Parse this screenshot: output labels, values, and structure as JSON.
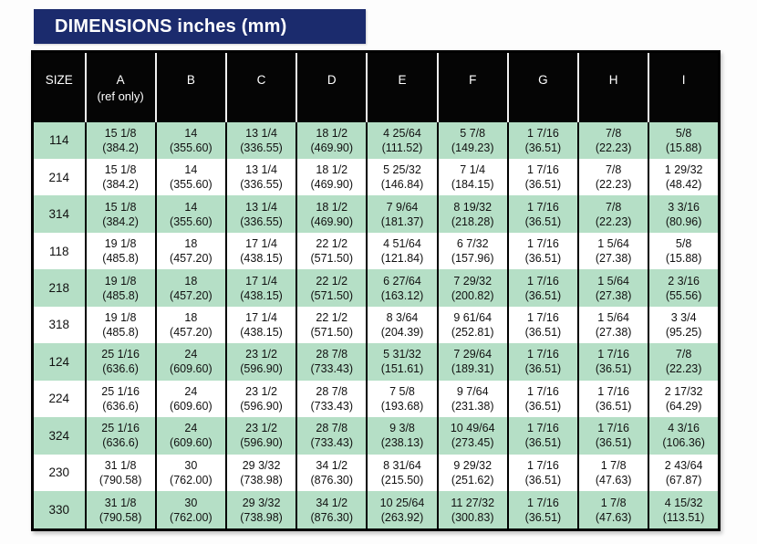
{
  "title": "DIMENSIONS inches (mm)",
  "colors": {
    "navy": "#1b2b6d",
    "header_bg": "#050505",
    "row_green": "#b5dfc6",
    "row_white": "#ffffff"
  },
  "table": {
    "headers": [
      "SIZE",
      "A",
      "B",
      "C",
      "D",
      "E",
      "F",
      "G",
      "H",
      "I"
    ],
    "header_subs": [
      "",
      "(ref only)",
      "",
      "",
      "",
      "",
      "",
      "",
      "",
      ""
    ],
    "rows": [
      {
        "size": "114",
        "cells": [
          {
            "in": "15 1/8",
            "mm": "(384.2)"
          },
          {
            "in": "14",
            "mm": "(355.60)"
          },
          {
            "in": "13 1/4",
            "mm": "(336.55)"
          },
          {
            "in": "18 1/2",
            "mm": "(469.90)"
          },
          {
            "in": "4 25/64",
            "mm": "(111.52)"
          },
          {
            "in": "5 7/8",
            "mm": "(149.23)"
          },
          {
            "in": "1 7/16",
            "mm": "(36.51)"
          },
          {
            "in": "7/8",
            "mm": "(22.23)"
          },
          {
            "in": "5/8",
            "mm": "(15.88)"
          }
        ]
      },
      {
        "size": "214",
        "cells": [
          {
            "in": "15 1/8",
            "mm": "(384.2)"
          },
          {
            "in": "14",
            "mm": "(355.60)"
          },
          {
            "in": "13 1/4",
            "mm": "(336.55)"
          },
          {
            "in": "18 1/2",
            "mm": "(469.90)"
          },
          {
            "in": "5 25/32",
            "mm": "(146.84)"
          },
          {
            "in": "7 1/4",
            "mm": "(184.15)"
          },
          {
            "in": "1 7/16",
            "mm": "(36.51)"
          },
          {
            "in": "7/8",
            "mm": "(22.23)"
          },
          {
            "in": "1 29/32",
            "mm": "(48.42)"
          }
        ]
      },
      {
        "size": "314",
        "cells": [
          {
            "in": "15 1/8",
            "mm": "(384.2)"
          },
          {
            "in": "14",
            "mm": "(355.60)"
          },
          {
            "in": "13 1/4",
            "mm": "(336.55)"
          },
          {
            "in": "18 1/2",
            "mm": "(469.90)"
          },
          {
            "in": "7 9/64",
            "mm": "(181.37)"
          },
          {
            "in": "8 19/32",
            "mm": "(218.28)"
          },
          {
            "in": "1 7/16",
            "mm": "(36.51)"
          },
          {
            "in": "7/8",
            "mm": "(22.23)"
          },
          {
            "in": "3 3/16",
            "mm": "(80.96)"
          }
        ]
      },
      {
        "size": "118",
        "cells": [
          {
            "in": "19 1/8",
            "mm": "(485.8)"
          },
          {
            "in": "18",
            "mm": "(457.20)"
          },
          {
            "in": "17 1/4",
            "mm": "(438.15)"
          },
          {
            "in": "22 1/2",
            "mm": "(571.50)"
          },
          {
            "in": "4 51/64",
            "mm": "(121.84)"
          },
          {
            "in": "6 7/32",
            "mm": "(157.96)"
          },
          {
            "in": "1 7/16",
            "mm": "(36.51)"
          },
          {
            "in": "1 5/64",
            "mm": "(27.38)"
          },
          {
            "in": "5/8",
            "mm": "(15.88)"
          }
        ]
      },
      {
        "size": "218",
        "cells": [
          {
            "in": "19 1/8",
            "mm": "(485.8)"
          },
          {
            "in": "18",
            "mm": "(457.20)"
          },
          {
            "in": "17 1/4",
            "mm": "(438.15)"
          },
          {
            "in": "22 1/2",
            "mm": "(571.50)"
          },
          {
            "in": "6 27/64",
            "mm": "(163.12)"
          },
          {
            "in": "7 29/32",
            "mm": "(200.82)"
          },
          {
            "in": "1 7/16",
            "mm": "(36.51)"
          },
          {
            "in": "1 5/64",
            "mm": "(27.38)"
          },
          {
            "in": "2 3/16",
            "mm": "(55.56)"
          }
        ]
      },
      {
        "size": "318",
        "cells": [
          {
            "in": "19 1/8",
            "mm": "(485.8)"
          },
          {
            "in": "18",
            "mm": "(457.20)"
          },
          {
            "in": "17 1/4",
            "mm": "(438.15)"
          },
          {
            "in": "22 1/2",
            "mm": "(571.50)"
          },
          {
            "in": "8 3/64",
            "mm": "(204.39)"
          },
          {
            "in": "9 61/64",
            "mm": "(252.81)"
          },
          {
            "in": "1 7/16",
            "mm": "(36.51)"
          },
          {
            "in": "1 5/64",
            "mm": "(27.38)"
          },
          {
            "in": "3 3/4",
            "mm": "(95.25)"
          }
        ]
      },
      {
        "size": "124",
        "cells": [
          {
            "in": "25 1/16",
            "mm": "(636.6)"
          },
          {
            "in": "24",
            "mm": "(609.60)"
          },
          {
            "in": "23 1/2",
            "mm": "(596.90)"
          },
          {
            "in": "28 7/8",
            "mm": "(733.43)"
          },
          {
            "in": "5 31/32",
            "mm": "(151.61)"
          },
          {
            "in": "7 29/64",
            "mm": "(189.31)"
          },
          {
            "in": "1 7/16",
            "mm": "(36.51)"
          },
          {
            "in": "1 7/16",
            "mm": "(36.51)"
          },
          {
            "in": "7/8",
            "mm": "(22.23)"
          }
        ]
      },
      {
        "size": "224",
        "cells": [
          {
            "in": "25 1/16",
            "mm": "(636.6)"
          },
          {
            "in": "24",
            "mm": "(609.60)"
          },
          {
            "in": "23 1/2",
            "mm": "(596.90)"
          },
          {
            "in": "28 7/8",
            "mm": "(733.43)"
          },
          {
            "in": "7 5/8",
            "mm": "(193.68)"
          },
          {
            "in": "9 7/64",
            "mm": "(231.38)"
          },
          {
            "in": "1 7/16",
            "mm": "(36.51)"
          },
          {
            "in": "1 7/16",
            "mm": "(36.51)"
          },
          {
            "in": "2 17/32",
            "mm": "(64.29)"
          }
        ]
      },
      {
        "size": "324",
        "cells": [
          {
            "in": "25 1/16",
            "mm": "(636.6)"
          },
          {
            "in": "24",
            "mm": "(609.60)"
          },
          {
            "in": "23 1/2",
            "mm": "(596.90)"
          },
          {
            "in": "28 7/8",
            "mm": "(733.43)"
          },
          {
            "in": "9 3/8",
            "mm": "(238.13)"
          },
          {
            "in": "10 49/64",
            "mm": "(273.45)"
          },
          {
            "in": "1 7/16",
            "mm": "(36.51)"
          },
          {
            "in": "1 7/16",
            "mm": "(36.51)"
          },
          {
            "in": "4 3/16",
            "mm": "(106.36)"
          }
        ]
      },
      {
        "size": "230",
        "cells": [
          {
            "in": "31 1/8",
            "mm": "(790.58)"
          },
          {
            "in": "30",
            "mm": "(762.00)"
          },
          {
            "in": "29 3/32",
            "mm": "(738.98)"
          },
          {
            "in": "34 1/2",
            "mm": "(876.30)"
          },
          {
            "in": "8 31/64",
            "mm": "(215.50)"
          },
          {
            "in": "9 29/32",
            "mm": "(251.62)"
          },
          {
            "in": "1 7/16",
            "mm": "(36.51)"
          },
          {
            "in": "1 7/8",
            "mm": "(47.63)"
          },
          {
            "in": "2 43/64",
            "mm": "(67.87)"
          }
        ]
      },
      {
        "size": "330",
        "cells": [
          {
            "in": "31 1/8",
            "mm": "(790.58)"
          },
          {
            "in": "30",
            "mm": "(762.00)"
          },
          {
            "in": "29 3/32",
            "mm": "(738.98)"
          },
          {
            "in": "34 1/2",
            "mm": "(876.30)"
          },
          {
            "in": "10 25/64",
            "mm": "(263.92)"
          },
          {
            "in": "11 27/32",
            "mm": "(300.83)"
          },
          {
            "in": "1 7/16",
            "mm": "(36.51)"
          },
          {
            "in": "1 7/8",
            "mm": "(47.63)"
          },
          {
            "in": "4 15/32",
            "mm": "(113.51)"
          }
        ]
      }
    ]
  }
}
